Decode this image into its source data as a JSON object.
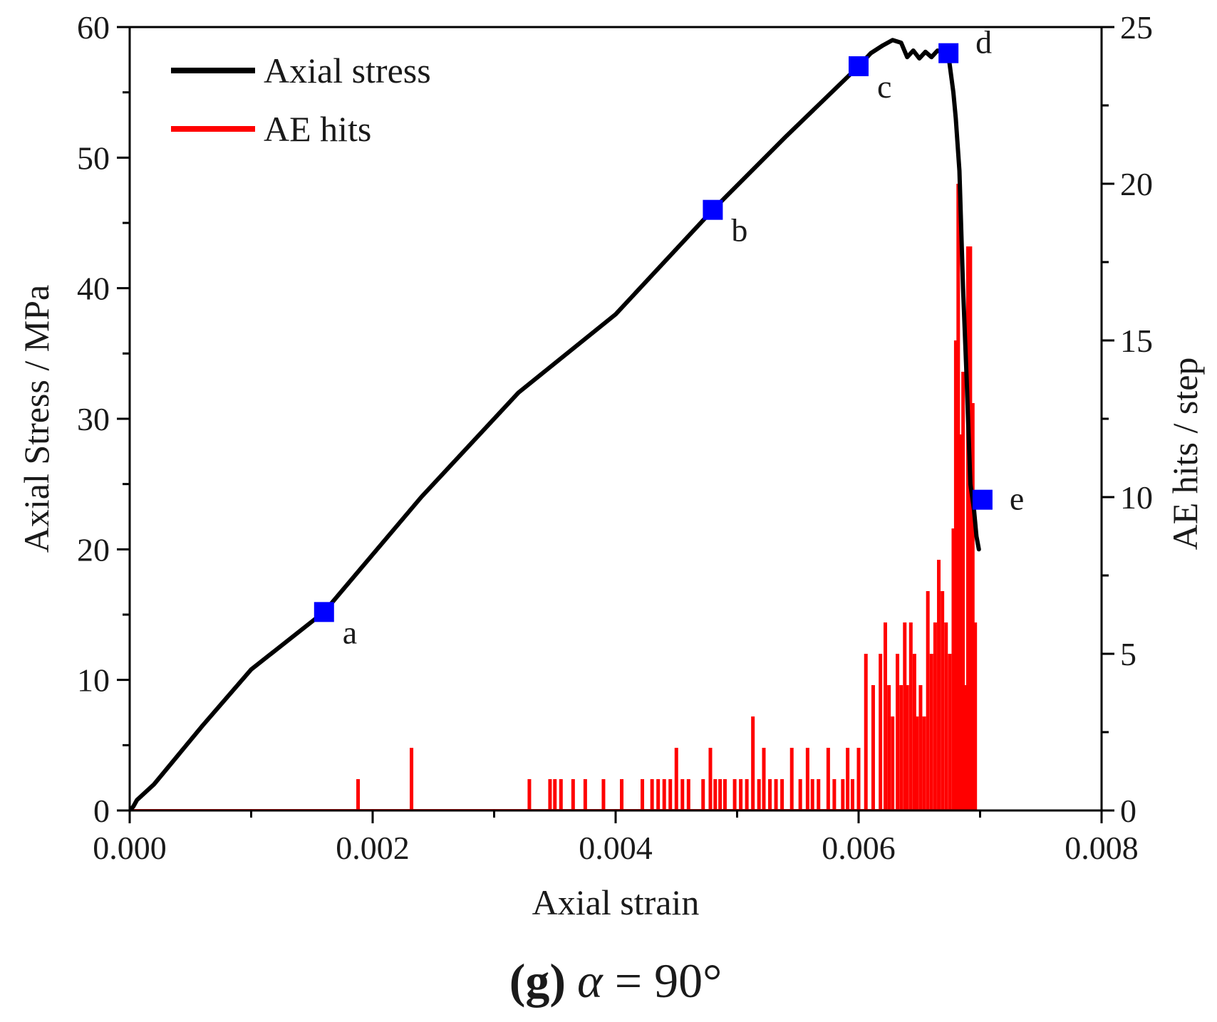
{
  "chart_data": {
    "type": "line",
    "caption": {
      "letter": "(g)",
      "symbol": "α",
      "rest": " = 90°"
    },
    "xlabel": "Axial strain",
    "ylabel": "Axial Stress / MPa",
    "y2label": "AE hits / step",
    "xlim": [
      0,
      0.008
    ],
    "ylim": [
      0,
      60
    ],
    "y2lim": [
      0,
      25
    ],
    "xticks": [
      0,
      0.002,
      0.004,
      0.006,
      0.008
    ],
    "xtick_labels": [
      "0.000",
      "0.002",
      "0.004",
      "0.006",
      "0.008"
    ],
    "yticks": [
      0,
      10,
      20,
      30,
      40,
      50,
      60
    ],
    "ytick_labels": [
      "0",
      "10",
      "20",
      "30",
      "40",
      "50",
      "60"
    ],
    "y2ticks": [
      0,
      5,
      10,
      15,
      20,
      25
    ],
    "y2tick_labels": [
      "0",
      "5",
      "10",
      "15",
      "20",
      "25"
    ],
    "grid": false,
    "legend_position": "top-left",
    "colors": {
      "stress": "#000000",
      "ae": "#ff0000",
      "marker": "#0000ff"
    },
    "series": [
      {
        "name": "Axial stress",
        "axis": "left",
        "x": [
          0,
          3e-05,
          6e-05,
          0.0002,
          0.0006,
          0.001,
          0.0016,
          0.0024,
          0.0032,
          0.004,
          0.0048,
          0.0054,
          0.006,
          0.0061,
          0.0062,
          0.00628,
          0.00635,
          0.0064,
          0.00645,
          0.0065,
          0.00655,
          0.0066,
          0.00665,
          0.0067,
          0.00674,
          0.00678,
          0.0068,
          0.00683,
          0.00686,
          0.00689,
          0.00692,
          0.00695,
          0.00697,
          0.00699
        ],
        "y": [
          0,
          0.3,
          0.8,
          2.0,
          6.5,
          10.8,
          15.2,
          24.0,
          32.0,
          38.0,
          46.0,
          51.6,
          57.0,
          58.0,
          58.6,
          59.0,
          58.8,
          57.7,
          58.2,
          57.6,
          58.1,
          57.7,
          58.2,
          58.0,
          57.8,
          55.0,
          53.0,
          49.0,
          40.0,
          33.0,
          25.0,
          23.0,
          21.0,
          20.0
        ]
      },
      {
        "name": "AE hits",
        "axis": "right",
        "x": [
          0.00188,
          0.00232,
          0.00329,
          0.00346,
          0.0035,
          0.00355,
          0.00365,
          0.00375,
          0.0039,
          0.00405,
          0.00422,
          0.0043,
          0.00435,
          0.0044,
          0.00445,
          0.0045,
          0.00455,
          0.0046,
          0.00472,
          0.00478,
          0.00482,
          0.00486,
          0.0049,
          0.00498,
          0.00503,
          0.00508,
          0.00513,
          0.00518,
          0.00522,
          0.00527,
          0.00532,
          0.00537,
          0.00545,
          0.00552,
          0.00558,
          0.00562,
          0.00567,
          0.00575,
          0.0058,
          0.00587,
          0.00591,
          0.00595,
          0.006,
          0.00606,
          0.00612,
          0.00618,
          0.00622,
          0.00625,
          0.00628,
          0.00632,
          0.00635,
          0.00638,
          0.0064,
          0.00643,
          0.00646,
          0.00648,
          0.00651,
          0.00654,
          0.00657,
          0.0066,
          0.00663,
          0.00666,
          0.00669,
          0.00672,
          0.00675,
          0.00678,
          0.0068,
          0.00682,
          0.00684,
          0.00686,
          0.00688,
          0.0069,
          0.00692,
          0.00694,
          0.00696
        ],
        "y": [
          1,
          2,
          1,
          1,
          1,
          1,
          1,
          1,
          1,
          1,
          1,
          1,
          1,
          1,
          1,
          2,
          1,
          1,
          1,
          2,
          1,
          1,
          1,
          1,
          1,
          1,
          3,
          1,
          2,
          1,
          1,
          1,
          2,
          1,
          2,
          1,
          1,
          2,
          1,
          1,
          2,
          1,
          2,
          5,
          4,
          5,
          6,
          4,
          3,
          5,
          4,
          6,
          4,
          6,
          5,
          3,
          4,
          3,
          7,
          5,
          6,
          8,
          7,
          6,
          5,
          9,
          15,
          20,
          12,
          14,
          4,
          18,
          18,
          13,
          6
        ]
      }
    ],
    "points": [
      {
        "label": "a",
        "x": 0.0016,
        "y": 15.2
      },
      {
        "label": "b",
        "x": 0.0048,
        "y": 46.0
      },
      {
        "label": "c",
        "x": 0.006,
        "y": 57.0
      },
      {
        "label": "d",
        "x": 0.00674,
        "y": 58.0
      },
      {
        "label": "e",
        "x": 0.00702,
        "y": 23.8
      }
    ]
  }
}
